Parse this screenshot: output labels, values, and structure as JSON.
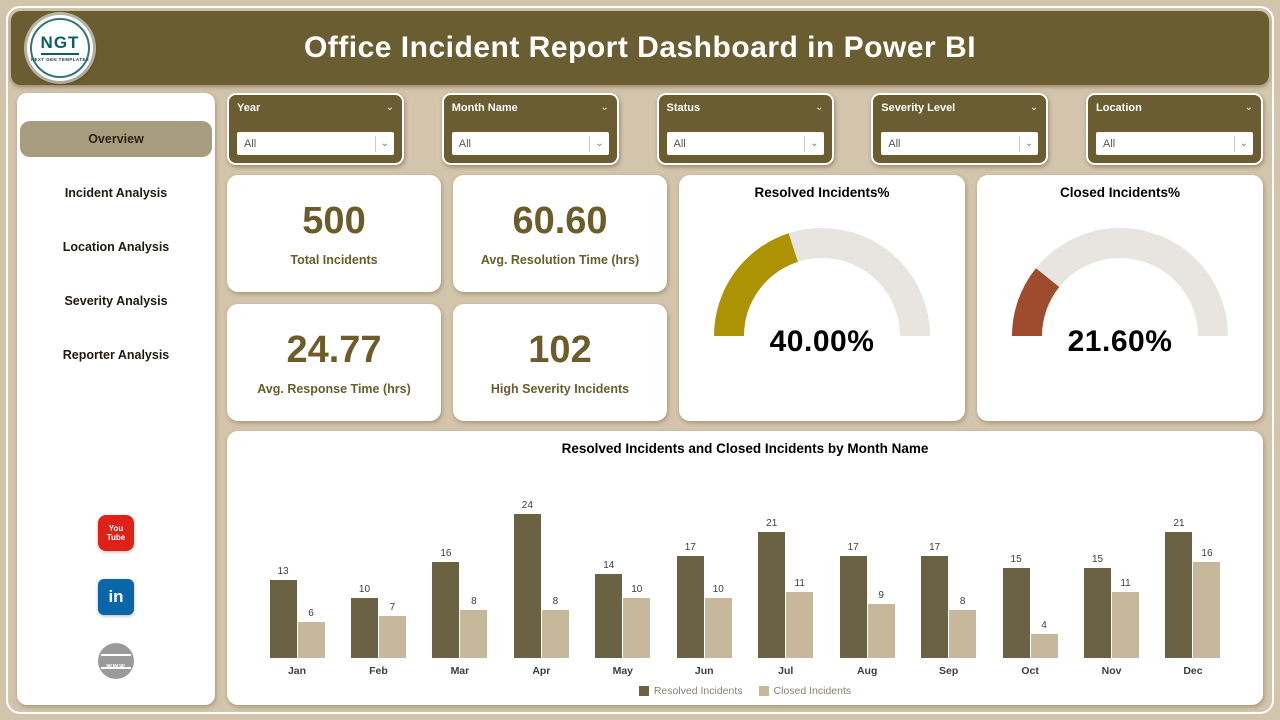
{
  "header": {
    "title": "Office Incident Report Dashboard in Power BI",
    "logo": {
      "text": "NGT",
      "subtext": "NEXT GEN TEMPLATES"
    }
  },
  "sidebar": {
    "items": [
      {
        "label": "Overview",
        "active": true
      },
      {
        "label": "Incident Analysis",
        "active": false
      },
      {
        "label": "Location Analysis",
        "active": false
      },
      {
        "label": "Severity Analysis",
        "active": false
      },
      {
        "label": "Reporter Analysis",
        "active": false
      }
    ],
    "social": [
      {
        "name": "youtube-icon",
        "text": "You\nTube"
      },
      {
        "name": "linkedin-icon",
        "text": "in"
      },
      {
        "name": "web-icon",
        "text": "www"
      }
    ]
  },
  "filters": [
    {
      "label": "Year",
      "value": "All"
    },
    {
      "label": "Month Name",
      "value": "All"
    },
    {
      "label": "Status",
      "value": "All"
    },
    {
      "label": "Severity Level",
      "value": "All"
    },
    {
      "label": "Location",
      "value": "All"
    }
  ],
  "kpis": [
    {
      "value": "500",
      "label": "Total Incidents"
    },
    {
      "value": "60.60",
      "label": "Avg. Resolution Time (hrs)"
    },
    {
      "value": "24.77",
      "label": "Avg. Response Time (hrs)"
    },
    {
      "value": "102",
      "label": "High Severity Incidents"
    }
  ],
  "chart_data": [
    {
      "type": "gauge",
      "title": "Resolved Incidents%",
      "value": 40.0,
      "min": 0,
      "max": 100,
      "display": "40.00%",
      "color": "#ad9204"
    },
    {
      "type": "gauge",
      "title": "Closed Incidents%",
      "value": 21.6,
      "min": 0,
      "max": 100,
      "display": "21.60%",
      "color": "#9e4b2e"
    },
    {
      "type": "bar",
      "title": "Resolved Incidents and Closed Incidents by Month Name",
      "categories": [
        "Jan",
        "Feb",
        "Mar",
        "Apr",
        "May",
        "Jun",
        "Jul",
        "Aug",
        "Sep",
        "Oct",
        "Nov",
        "Dec"
      ],
      "series": [
        {
          "name": "Resolved Incidents",
          "color": "#6b6243",
          "values": [
            13,
            10,
            16,
            24,
            14,
            17,
            21,
            17,
            17,
            15,
            15,
            21
          ]
        },
        {
          "name": "Closed Incidents",
          "color": "#c7b89c",
          "values": [
            6,
            7,
            8,
            8,
            10,
            10,
            11,
            9,
            8,
            4,
            11,
            16
          ]
        }
      ],
      "ylim": [
        0,
        25
      ],
      "grid": false,
      "legend_position": "bottom"
    }
  ],
  "colors": {
    "header_bg": "#6a5d31",
    "page_bg": "#d3c5ac",
    "kpi_text": "#6b5c2a",
    "active_item_bg": "#a89c7e",
    "gauge_track": "#e8e5e0"
  }
}
